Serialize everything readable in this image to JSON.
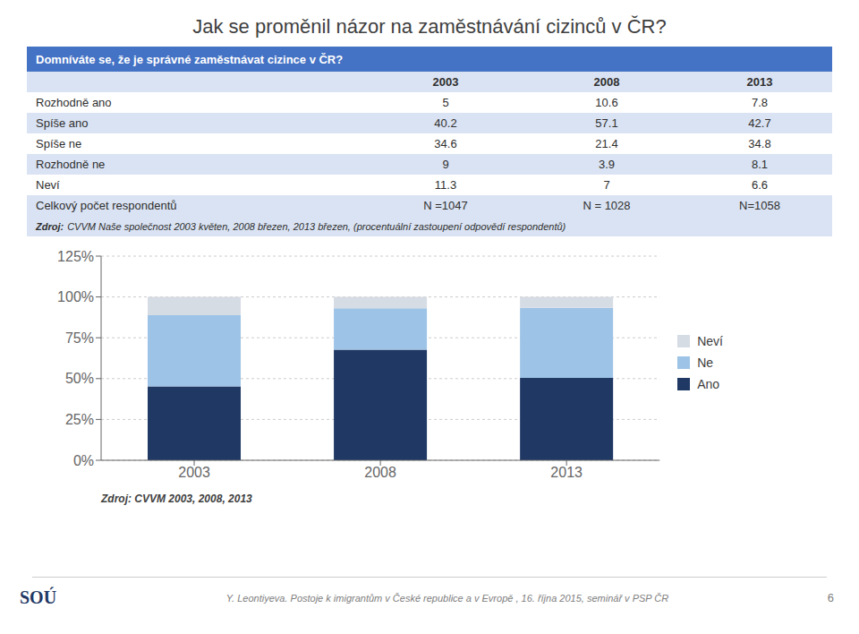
{
  "chart_data": {
    "type": "bar",
    "title": "Jak se proměnil názor na zaměstnávání cizinců v ČR?",
    "categories": [
      "2003",
      "2008",
      "2013"
    ],
    "series": [
      {
        "name": "Ano",
        "color": "#1F3864",
        "values": [
          45.2,
          67.7,
          50.5
        ]
      },
      {
        "name": "Ne",
        "color": "#9DC3E6",
        "values": [
          43.6,
          25.3,
          42.9
        ]
      },
      {
        "name": "Neví",
        "color": "#D6DCE4",
        "values": [
          11.3,
          7.0,
          6.6
        ]
      }
    ],
    "stacked": true,
    "ylim": [
      0,
      125
    ],
    "yticks": [
      {
        "value": 0,
        "label": "0%"
      },
      {
        "value": 25,
        "label": "25%"
      },
      {
        "value": 50,
        "label": "50%"
      },
      {
        "value": 75,
        "label": "75%"
      },
      {
        "value": 100,
        "label": "100%"
      },
      {
        "value": 125,
        "label": "125%"
      }
    ],
    "grid": true,
    "legend": "right"
  },
  "table": {
    "subtitle": "Domníváte se, že je správné zaměstnávat cizince v ČR?",
    "columns": [
      "2003",
      "2008",
      "2013"
    ],
    "rows": [
      [
        "Rozhodně ano",
        "5",
        "10.6",
        "7.8"
      ],
      [
        "Spíše ano",
        "40.2",
        "57.1",
        "42.7"
      ],
      [
        "Spíše ne",
        "34.6",
        "21.4",
        "34.8"
      ],
      [
        "Rozhodně ne",
        "9",
        "3.9",
        "8.1"
      ],
      [
        "Neví",
        "11.3",
        "7",
        "6.6"
      ],
      [
        "Celkový počet respondentů",
        "N =1047",
        "N = 1028",
        "N=1058"
      ]
    ],
    "source": [
      "Zdroj:",
      "CVVM Naše společnost 2003 květen, 2008 březen, 2013 březen, (procentuální zastoupení odpovědí respondentů)"
    ]
  },
  "annotations": {
    "source": "Zdroj: CVVM 2003, 2008, 2013",
    "footer": "Y. Leontiyeva. Postoje k imigrantům v České republice a v Evropě , 16. října 2015, seminář v PSP ČR",
    "page": "6",
    "logo": "SOÚ"
  }
}
